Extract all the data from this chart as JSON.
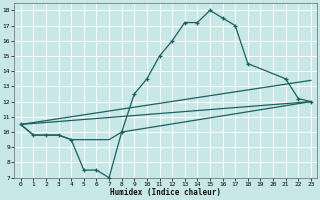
{
  "xlabel": "Humidex (Indice chaleur)",
  "xlim": [
    -0.5,
    23.5
  ],
  "ylim": [
    7,
    18.5
  ],
  "yticks": [
    7,
    8,
    9,
    10,
    11,
    12,
    13,
    14,
    15,
    16,
    17,
    18
  ],
  "xticks": [
    0,
    1,
    2,
    3,
    4,
    5,
    6,
    7,
    8,
    9,
    10,
    11,
    12,
    13,
    14,
    15,
    16,
    17,
    18,
    19,
    20,
    21,
    22,
    23
  ],
  "bg_color": "#c8e8e8",
  "grid_color": "#aed4d4",
  "line_color": "#1a6060",
  "line1_x": [
    0,
    1,
    2,
    3,
    4,
    5,
    6,
    7,
    8,
    9,
    10,
    11,
    12,
    13,
    14,
    15,
    16,
    17,
    18,
    21,
    22,
    23
  ],
  "line1_y": [
    10.5,
    9.8,
    9.8,
    9.8,
    9.5,
    7.5,
    7.5,
    7.0,
    10.0,
    12.5,
    13.5,
    15.0,
    16.0,
    17.2,
    17.2,
    18.0,
    17.5,
    17.0,
    14.5,
    13.5,
    12.2,
    12.0
  ],
  "line2_x": [
    0,
    1,
    2,
    3,
    4,
    5,
    6,
    7,
    8,
    23
  ],
  "line2_y": [
    10.5,
    9.8,
    9.8,
    9.8,
    9.5,
    9.5,
    9.5,
    9.5,
    10.0,
    12.0
  ],
  "line3_x": [
    0,
    23
  ],
  "line3_y": [
    10.5,
    13.4
  ],
  "line4_x": [
    0,
    23
  ],
  "line4_y": [
    10.5,
    12.0
  ]
}
